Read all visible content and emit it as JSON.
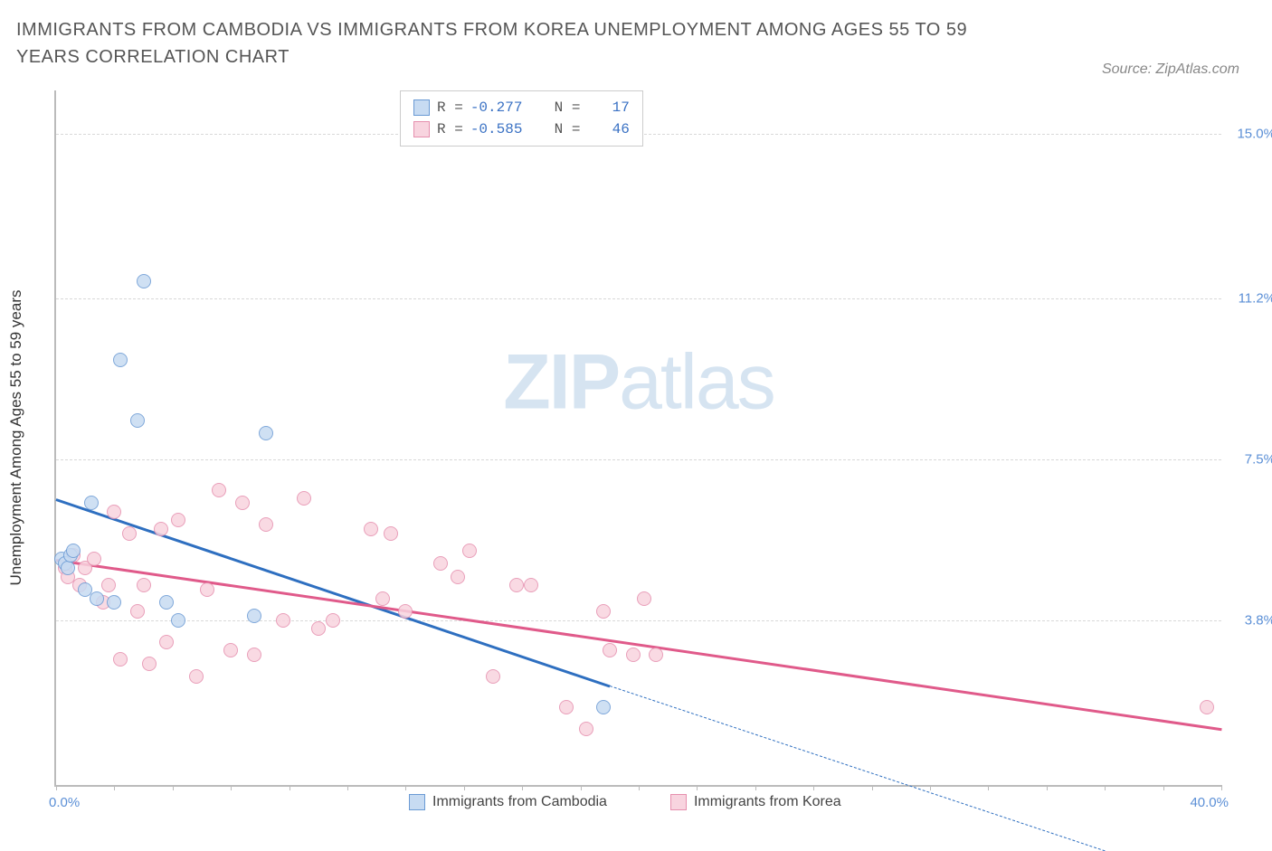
{
  "title": "IMMIGRANTS FROM CAMBODIA VS IMMIGRANTS FROM KOREA UNEMPLOYMENT AMONG AGES 55 TO 59 YEARS CORRELATION CHART",
  "source": "Source: ZipAtlas.com",
  "watermark_bold": "ZIP",
  "watermark_light": "atlas",
  "ylabel": "Unemployment Among Ages 55 to 59 years",
  "chart": {
    "type": "scatter",
    "xlim": [
      0,
      40
    ],
    "ylim": [
      0,
      16
    ],
    "xtick_labels": [
      "0.0%",
      "40.0%"
    ],
    "xtick_positions": [
      0,
      40
    ],
    "ytick_labels": [
      "3.8%",
      "7.5%",
      "11.2%",
      "15.0%"
    ],
    "ytick_positions": [
      3.8,
      7.5,
      11.2,
      15.0
    ],
    "xaxis_minor_ticks": [
      0,
      2,
      4,
      6,
      8,
      10,
      12,
      14,
      16,
      18,
      20,
      22,
      24,
      26,
      28,
      30,
      32,
      34,
      36,
      38,
      40
    ],
    "grid_color": "#d8d8d8",
    "background_color": "#ffffff",
    "axis_color": "#bbbbbb",
    "marker_radius": 8,
    "marker_border": 1,
    "series": [
      {
        "name": "Immigrants from Cambodia",
        "fill": "#c7dbf2",
        "stroke": "#6a9ad4",
        "line_color": "#2e6fc0",
        "R": "-0.277",
        "N": "17",
        "trend": {
          "x1": 0,
          "y1": 6.6,
          "x2": 19,
          "y2": 2.3,
          "dash_x2": 36,
          "dash_y2": -1.5
        },
        "points": [
          [
            0.2,
            5.2
          ],
          [
            0.3,
            5.1
          ],
          [
            0.4,
            5.0
          ],
          [
            0.5,
            5.3
          ],
          [
            0.6,
            5.4
          ],
          [
            1.0,
            4.5
          ],
          [
            1.2,
            6.5
          ],
          [
            1.4,
            4.3
          ],
          [
            2.2,
            9.8
          ],
          [
            2.0,
            4.2
          ],
          [
            3.0,
            11.6
          ],
          [
            2.8,
            8.4
          ],
          [
            3.8,
            4.2
          ],
          [
            4.2,
            3.8
          ],
          [
            6.8,
            3.9
          ],
          [
            7.2,
            8.1
          ],
          [
            18.8,
            1.8
          ]
        ]
      },
      {
        "name": "Immigrants from Korea",
        "fill": "#f8d4df",
        "stroke": "#e68fae",
        "line_color": "#e05a8a",
        "R": "-0.585",
        "N": "46",
        "trend": {
          "x1": 0,
          "y1": 5.2,
          "x2": 40,
          "y2": 1.3
        },
        "points": [
          [
            0.3,
            5.0
          ],
          [
            0.4,
            4.8
          ],
          [
            0.6,
            5.3
          ],
          [
            0.8,
            4.6
          ],
          [
            1.0,
            5.0
          ],
          [
            1.3,
            5.2
          ],
          [
            1.6,
            4.2
          ],
          [
            1.8,
            4.6
          ],
          [
            2.0,
            6.3
          ],
          [
            2.2,
            2.9
          ],
          [
            2.5,
            5.8
          ],
          [
            2.8,
            4.0
          ],
          [
            3.0,
            4.6
          ],
          [
            3.2,
            2.8
          ],
          [
            3.6,
            5.9
          ],
          [
            3.8,
            3.3
          ],
          [
            4.2,
            6.1
          ],
          [
            4.8,
            2.5
          ],
          [
            5.2,
            4.5
          ],
          [
            5.6,
            6.8
          ],
          [
            6.0,
            3.1
          ],
          [
            6.4,
            6.5
          ],
          [
            6.8,
            3.0
          ],
          [
            7.2,
            6.0
          ],
          [
            7.8,
            3.8
          ],
          [
            8.5,
            6.6
          ],
          [
            9.0,
            3.6
          ],
          [
            9.5,
            3.8
          ],
          [
            10.8,
            5.9
          ],
          [
            11.2,
            4.3
          ],
          [
            11.5,
            5.8
          ],
          [
            12.0,
            4.0
          ],
          [
            13.2,
            5.1
          ],
          [
            13.8,
            4.8
          ],
          [
            14.2,
            5.4
          ],
          [
            15.0,
            2.5
          ],
          [
            15.8,
            4.6
          ],
          [
            16.3,
            4.6
          ],
          [
            17.5,
            1.8
          ],
          [
            18.2,
            1.3
          ],
          [
            18.8,
            4.0
          ],
          [
            19.0,
            3.1
          ],
          [
            19.8,
            3.0
          ],
          [
            20.2,
            4.3
          ],
          [
            20.6,
            3.0
          ],
          [
            39.5,
            1.8
          ]
        ]
      }
    ]
  },
  "legend_top": {
    "r_label": "R =",
    "n_label": "N ="
  },
  "colors": {
    "title": "#555555",
    "source": "#888888",
    "tick": "#5b8fd6",
    "number": "#3b72c4"
  }
}
